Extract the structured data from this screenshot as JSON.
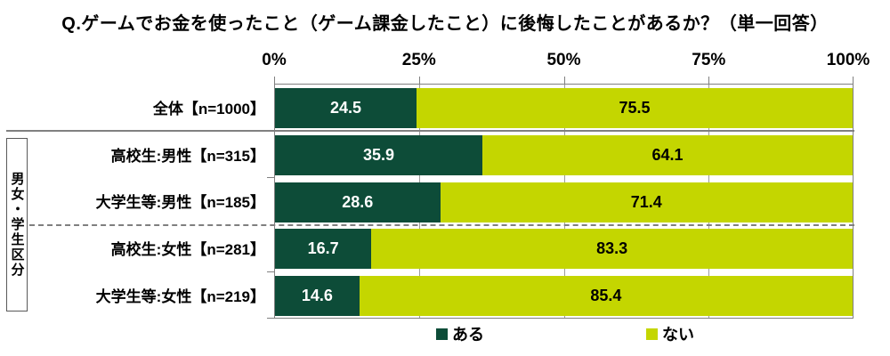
{
  "title": "Q.ゲームでお金を使ったこと（ゲーム課金したこと）に後悔したことがあるか？（単一回答）",
  "axis": {
    "ticks": [
      "0%",
      "25%",
      "50%",
      "75%",
      "100%"
    ]
  },
  "group_label": "男女・学生区分",
  "legend": [
    {
      "label": "ある",
      "color": "#0d4c38"
    },
    {
      "label": "ない",
      "color": "#c4d600"
    }
  ],
  "colors": {
    "series_aru": "#0d4c38",
    "series_nai": "#c4d600",
    "axis_line": "#808080",
    "gridline": "#9c9c9c"
  },
  "chart_data": {
    "type": "bar",
    "stacked": true,
    "orientation": "horizontal",
    "title": "Q.ゲームでお金を使ったこと（ゲーム課金したこと）に後悔したことがあるか？（単一回答）",
    "categories": [
      "全体【n=1000】",
      "高校生:男性【n=315】",
      "大学生等:男性【n=185】",
      "高校生:女性【n=281】",
      "大学生等:女性【n=219】"
    ],
    "series": [
      {
        "name": "ある",
        "color": "#0d4c38",
        "values": [
          24.5,
          35.9,
          28.6,
          16.7,
          14.6
        ]
      },
      {
        "name": "ない",
        "color": "#c4d600",
        "values": [
          75.5,
          64.1,
          71.4,
          83.3,
          85.4
        ]
      }
    ],
    "xlim": [
      0,
      100
    ],
    "x_ticks": [
      "0%",
      "25%",
      "50%",
      "75%",
      "100%"
    ],
    "grid": "vertical at 25/50/75",
    "legend_position": "bottom",
    "value_labels": "inside segments, one decimal"
  }
}
